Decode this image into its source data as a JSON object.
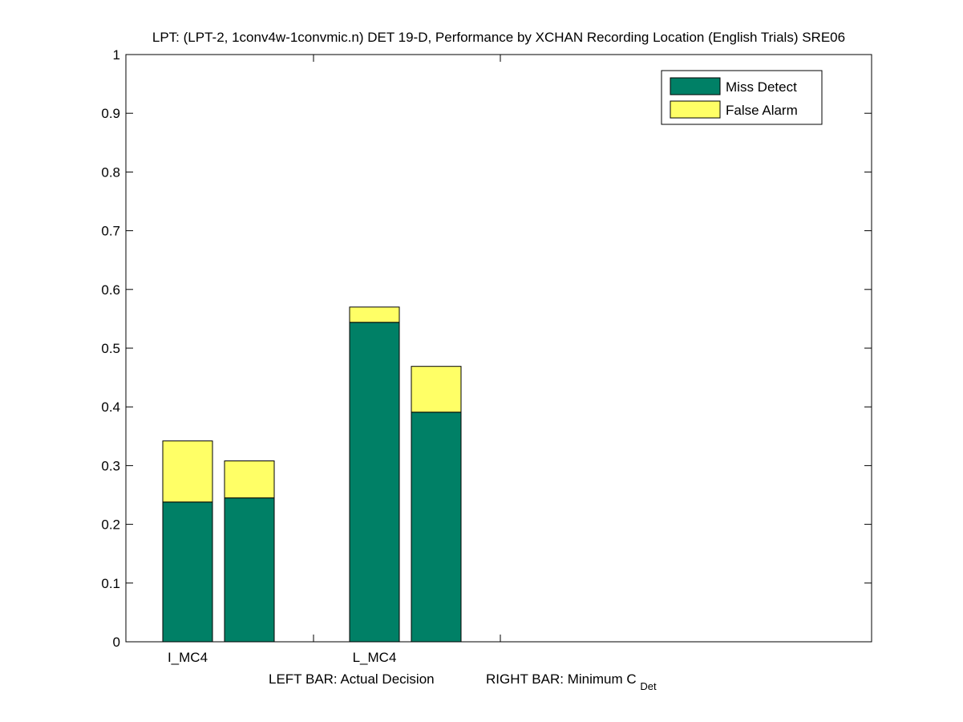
{
  "chart_data": {
    "type": "bar",
    "stacked": true,
    "title": "LPT: (LPT-2, 1conv4w-1convmic.n) DET 19-D,  Performance by XCHAN Recording Location (English Trials) SRE06",
    "categories": [
      "I_MC4",
      "L_MC4"
    ],
    "bar_roles": [
      "Actual Decision",
      "Minimum C_Det"
    ],
    "series": [
      {
        "name": "Miss Detect",
        "color": "#008066",
        "values": [
          [
            0.238,
            0.245
          ],
          [
            0.544,
            0.391
          ]
        ]
      },
      {
        "name": "False Alarm",
        "color": "#ffff66",
        "values": [
          [
            0.104,
            0.063
          ],
          [
            0.026,
            0.078
          ]
        ]
      }
    ],
    "totals": [
      [
        0.342,
        0.308
      ],
      [
        0.57,
        0.469
      ]
    ],
    "ylim": [
      0,
      1
    ],
    "yticks": [
      "0",
      "0.1",
      "0.2",
      "0.3",
      "0.4",
      "0.5",
      "0.6",
      "0.7",
      "0.8",
      "0.9",
      "1"
    ],
    "xlabel": {
      "left": "LEFT BAR: Actual Decision",
      "right_prefix": "RIGHT BAR: Minimum C",
      "right_subscript": "Det"
    },
    "legend": {
      "position": "top-right",
      "entries": [
        "Miss Detect",
        "False Alarm"
      ]
    }
  }
}
